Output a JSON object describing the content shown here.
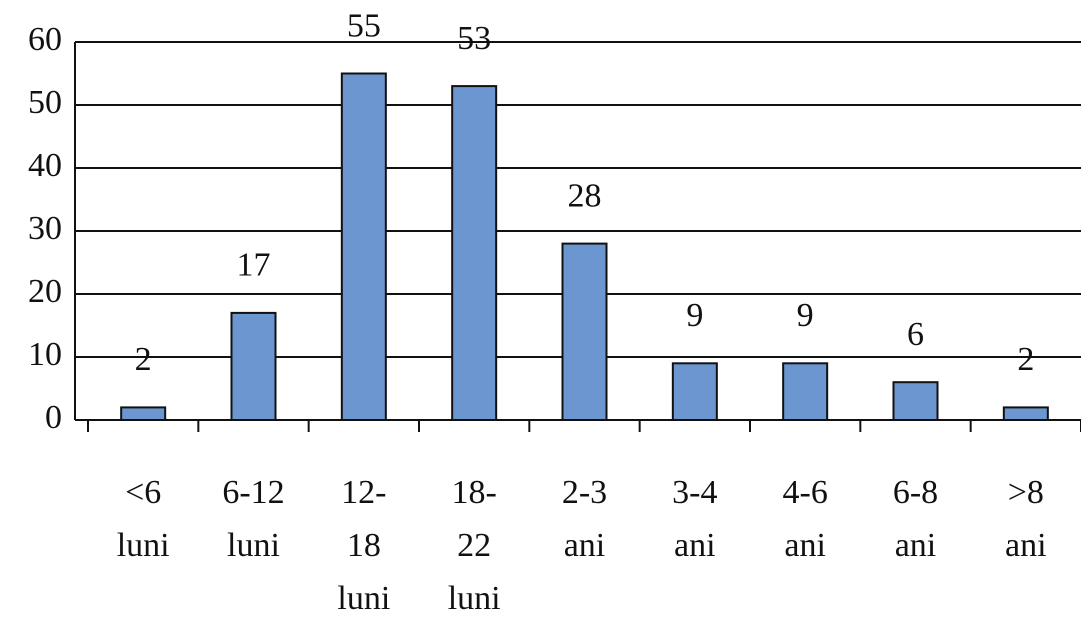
{
  "chart_data": {
    "type": "bar",
    "categories": [
      [
        "<6",
        "luni"
      ],
      [
        "6-12",
        "luni"
      ],
      [
        "12-",
        "18",
        "luni"
      ],
      [
        "18-",
        "22",
        "luni"
      ],
      [
        "2-3",
        "ani"
      ],
      [
        "3-4",
        "ani"
      ],
      [
        "4-6",
        "ani"
      ],
      [
        "6-8",
        "ani"
      ],
      [
        ">8",
        "ani"
      ]
    ],
    "values": [
      2,
      17,
      55,
      53,
      28,
      9,
      9,
      6,
      2
    ],
    "color": "#6b96cf",
    "ylim": [
      0,
      60
    ],
    "yticks": [
      0,
      10,
      20,
      30,
      40,
      50,
      60
    ],
    "grid": true
  }
}
